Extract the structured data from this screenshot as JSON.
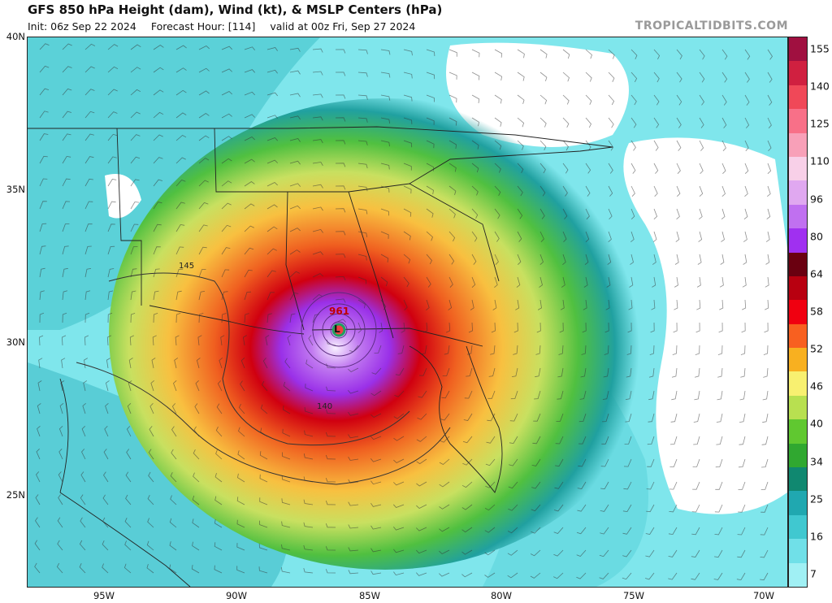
{
  "header": {
    "title": "GFS 850 hPa Height (dam), Wind (kt), & MSLP Centers (hPa)",
    "init": "Init: 06z Sep 22 2024",
    "forecast_hour": "Forecast Hour: [114]",
    "valid": "valid at 00z Fri, Sep 27 2024",
    "brand": "TROPICALTIDBITS.COM"
  },
  "axes": {
    "lat_labels": [
      "40N",
      "35N",
      "30N",
      "25N"
    ],
    "lon_labels": [
      "95W",
      "90W",
      "85W",
      "80W",
      "75W",
      "70W"
    ]
  },
  "colorbar": {
    "labels": [
      "155",
      "140",
      "125",
      "110",
      "96",
      "80",
      "64",
      "58",
      "52",
      "46",
      "40",
      "34",
      "25",
      "16",
      "7"
    ],
    "colors": [
      "#a01040",
      "#d02040",
      "#f04858",
      "#f87088",
      "#f8a0b8",
      "#f8d0e8",
      "#e0a8f0",
      "#c070f0",
      "#a030f0",
      "#6a0010",
      "#b80010",
      "#f00010",
      "#f86020",
      "#f8b020",
      "#f8f070",
      "#b8e050",
      "#60c830",
      "#30a830",
      "#108870",
      "#20a8b0",
      "#40c8d0",
      "#70e0e8",
      "#a0f0f4"
    ]
  },
  "storm": {
    "pressure": "961",
    "center_symbol": "L"
  },
  "contours": {
    "label_145": "145",
    "label_140": "140"
  },
  "colors": {
    "background_wind": "#7fe6ec",
    "calm_white": "#ffffff"
  }
}
